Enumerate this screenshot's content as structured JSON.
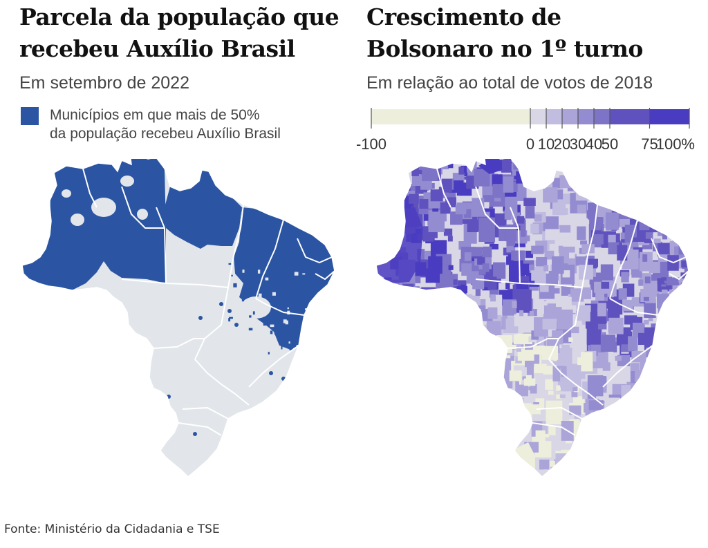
{
  "left_panel": {
    "title_line1": "Parcela da população que",
    "title_line2": "recebeu Auxílio Brasil",
    "subtitle": "Em setembro de 2022",
    "legend_line1": "Municípios em que mais de 50%",
    "legend_line2": "da população recebeu  Auxílio Brasil",
    "legend_color": "#2b55a3",
    "base_color": "#e2e6ea"
  },
  "right_panel": {
    "title_line1": "Crescimento de",
    "title_line2": "Bolsonaro no 1º turno",
    "subtitle": "Em relação ao total de votos de 2018"
  },
  "color_scale": {
    "breaks": [
      -100,
      0,
      10,
      20,
      30,
      40,
      50,
      75,
      100
    ],
    "tick_labels": [
      "-100",
      "0",
      "10",
      "20",
      "30",
      "40",
      "50",
      "75",
      "100%"
    ],
    "colors": [
      "#eeeedc",
      "#d9d7e6",
      "#c1bde0",
      "#aaa4d8",
      "#948cd0",
      "#7d73c7",
      "#5f52be",
      "#4a3cc0"
    ]
  },
  "source": "Fonte: Ministério da Cidadania e TSE"
}
